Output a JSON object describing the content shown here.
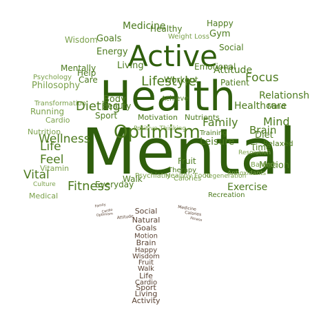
{
  "colors": {
    "background": "#ffffff",
    "canopy_dark": "#2f5e0c",
    "canopy_mid": "#4c7a1e",
    "canopy_light": "#7aa04a",
    "trunk": "#5a4334"
  },
  "canopy_words": [
    {
      "text": "Mental",
      "role": "large"
    },
    {
      "text": "Health",
      "role": "large"
    },
    {
      "text": "Active",
      "role": "large"
    },
    {
      "text": "Optimism",
      "role": "medium"
    },
    {
      "text": "Lifestyle",
      "role": "medium"
    },
    {
      "text": "Dieting",
      "role": "medium"
    },
    {
      "text": "Wellness",
      "role": "medium"
    },
    {
      "text": "Attitude",
      "role": "medium"
    },
    {
      "text": "Fitness",
      "role": "medium"
    },
    {
      "text": "Relationship",
      "role": "medium"
    },
    {
      "text": "Exercise",
      "role": "medium"
    },
    {
      "text": "Life",
      "role": "medium"
    },
    {
      "text": "Feel",
      "role": "medium"
    },
    {
      "text": "Vital",
      "role": "medium"
    },
    {
      "text": "Focus",
      "role": "medium"
    },
    {
      "text": "Mind",
      "role": "medium"
    },
    {
      "text": "Brain",
      "role": "medium"
    },
    {
      "text": "Family",
      "role": "medium"
    },
    {
      "text": "Healthcare",
      "role": "medium"
    },
    {
      "text": "Leisure",
      "role": "medium"
    },
    {
      "text": "Philosophy",
      "role": "small"
    },
    {
      "text": "Medicine",
      "role": "small"
    },
    {
      "text": "Goals",
      "role": "small"
    },
    {
      "text": "Energy",
      "role": "small"
    },
    {
      "text": "Living",
      "role": "small"
    },
    {
      "text": "Mentally",
      "role": "small"
    },
    {
      "text": "Care",
      "role": "small"
    },
    {
      "text": "Help",
      "role": "small"
    },
    {
      "text": "Running",
      "role": "small"
    },
    {
      "text": "Fruit",
      "role": "small"
    },
    {
      "text": "Sport",
      "role": "small"
    },
    {
      "text": "Body",
      "role": "small"
    },
    {
      "text": "Emotional",
      "role": "small"
    },
    {
      "text": "Social",
      "role": "small"
    },
    {
      "text": "Happy",
      "role": "small"
    },
    {
      "text": "Gym",
      "role": "small"
    },
    {
      "text": "Patient",
      "role": "small"
    },
    {
      "text": "Diet",
      "role": "small"
    },
    {
      "text": "Time",
      "role": "small"
    },
    {
      "text": "Motion",
      "role": "small"
    },
    {
      "text": "Walk",
      "role": "small"
    },
    {
      "text": "Everyday",
      "role": "small"
    },
    {
      "text": "Medical",
      "role": "small"
    },
    {
      "text": "Wisdom",
      "role": "small"
    },
    {
      "text": "Healthy",
      "role": "small"
    },
    {
      "text": "Beauty",
      "role": "small"
    },
    {
      "text": "Workout",
      "role": "small"
    },
    {
      "text": "Nutrients",
      "role": "small"
    },
    {
      "text": "Motivation",
      "role": "small"
    },
    {
      "text": "Relaxed",
      "role": "small"
    },
    {
      "text": "Balance",
      "role": "small"
    },
    {
      "text": "Training",
      "role": "small"
    },
    {
      "text": "Psychiatry",
      "role": "small"
    },
    {
      "text": "Cardio",
      "role": "small"
    },
    {
      "text": "Calories",
      "role": "small"
    },
    {
      "text": "Recreation",
      "role": "small"
    },
    {
      "text": "Therapy",
      "role": "small"
    },
    {
      "text": "Nutrition",
      "role": "small"
    },
    {
      "text": "Vitamin",
      "role": "small"
    },
    {
      "text": "Resolution",
      "role": "small"
    },
    {
      "text": "Transformation",
      "role": "small"
    },
    {
      "text": "Culture",
      "role": "small"
    },
    {
      "text": "Achieve",
      "role": "small"
    },
    {
      "text": "Regeneration",
      "role": "small"
    },
    {
      "text": "Positive Thinking",
      "role": "small"
    },
    {
      "text": "Psychology",
      "role": "small"
    },
    {
      "text": "Weight Loss",
      "role": "small"
    },
    {
      "text": "Antioxidants",
      "role": "small"
    },
    {
      "text": "Healthy Food",
      "role": "small"
    },
    {
      "text": "Mind",
      "role": "small"
    }
  ],
  "trunk_words": [
    "Social",
    "Natural",
    "Goals",
    "Motion",
    "Brain",
    "Happy",
    "Wisdom",
    "Fruit",
    "Walk",
    "Life",
    "Cardio",
    "Sport",
    "Living",
    "Activity"
  ],
  "root_words": [
    "Family",
    "Cardio",
    "Attitude",
    "Optimism",
    "Medicine",
    "Calories",
    "Fitness"
  ]
}
